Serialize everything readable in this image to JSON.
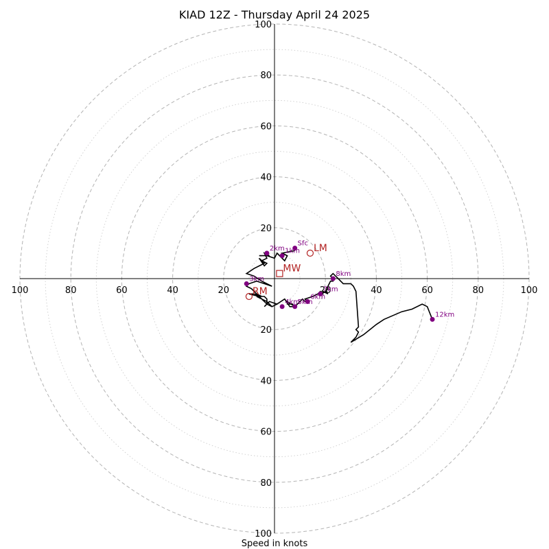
{
  "chart_data": {
    "type": "hodograph",
    "title": "KIAD 12Z - Thursday April 24 2025",
    "xlabel": "Speed in knots",
    "units": "knots",
    "range": [
      -100,
      100
    ],
    "ring_major": [
      20,
      40,
      60,
      80,
      100
    ],
    "ring_minor": [
      10,
      30,
      50,
      70,
      90
    ],
    "x_tick_labels": [
      "100",
      "80",
      "60",
      "40",
      "20",
      "20",
      "40",
      "60",
      "80",
      "100"
    ],
    "y_tick_labels": [
      "100",
      "80",
      "60",
      "40",
      "20",
      "20",
      "40",
      "60",
      "80",
      "100"
    ],
    "grid": true,
    "trace_points": [
      [
        8,
        11
      ],
      [
        3,
        10
      ],
      [
        5,
        9
      ],
      [
        4,
        7
      ],
      [
        1,
        10
      ],
      [
        0,
        8
      ],
      [
        -3,
        9
      ],
      [
        -6,
        9
      ],
      [
        -2,
        9
      ],
      [
        -4,
        10
      ],
      [
        -3,
        8
      ],
      [
        -5,
        7
      ],
      [
        -3,
        6
      ],
      [
        -4,
        5
      ],
      [
        -6,
        8
      ],
      [
        -4,
        6
      ],
      [
        -8,
        4
      ],
      [
        -11,
        2
      ],
      [
        -8,
        1
      ],
      [
        -5,
        -1
      ],
      [
        -1,
        -3
      ],
      [
        -4,
        -2
      ],
      [
        -7,
        -1
      ],
      [
        -10,
        -2
      ],
      [
        -11,
        -3
      ],
      [
        -9,
        -4
      ],
      [
        -7,
        -6
      ],
      [
        -5,
        -7
      ],
      [
        -8,
        -6
      ],
      [
        -10,
        -6
      ],
      [
        -6,
        -7
      ],
      [
        -3,
        -10
      ],
      [
        -4,
        -11
      ],
      [
        -3,
        -10
      ],
      [
        -3,
        -8
      ],
      [
        -4,
        -7
      ],
      [
        -7,
        -7
      ],
      [
        -3,
        -9
      ],
      [
        -1,
        -11
      ],
      [
        1,
        -10
      ],
      [
        -2,
        -9
      ],
      [
        -3,
        -10
      ],
      [
        -1,
        -11
      ],
      [
        1,
        -10
      ],
      [
        4,
        -8
      ],
      [
        6,
        -11
      ],
      [
        8,
        -11
      ],
      [
        5,
        -9
      ],
      [
        5,
        -10
      ],
      [
        7,
        -10
      ],
      [
        8,
        -11
      ],
      [
        10,
        -9
      ],
      [
        11,
        -8
      ],
      [
        12,
        -9
      ],
      [
        13,
        -9
      ],
      [
        12,
        -8
      ],
      [
        15,
        -7
      ],
      [
        17,
        -6
      ],
      [
        18,
        -5
      ],
      [
        19,
        -6
      ],
      [
        19,
        -5
      ],
      [
        21,
        -6
      ],
      [
        20,
        -5
      ],
      [
        21,
        -4
      ],
      [
        21,
        -3
      ],
      [
        22,
        -1
      ],
      [
        23,
        -1
      ],
      [
        23,
        0
      ],
      [
        22,
        1
      ],
      [
        23,
        2
      ],
      [
        25,
        0
      ],
      [
        27,
        -2
      ],
      [
        30,
        -2
      ],
      [
        31,
        -3
      ],
      [
        32,
        -5
      ],
      [
        33,
        -19
      ],
      [
        32,
        -20
      ],
      [
        33,
        -21
      ],
      [
        32,
        -23
      ],
      [
        30,
        -25
      ],
      [
        35,
        -22
      ],
      [
        40,
        -18
      ],
      [
        43,
        -16
      ],
      [
        50,
        -13
      ],
      [
        54,
        -12
      ],
      [
        58,
        -10
      ],
      [
        60,
        -11
      ],
      [
        62,
        -16
      ]
    ],
    "height_markers": [
      {
        "label": "Sfc",
        "u": 8,
        "v": 12
      },
      {
        "label": "1km",
        "u": 3,
        "v": 9
      },
      {
        "label": "2km",
        "u": -3,
        "v": 10
      },
      {
        "label": "3km",
        "u": -11,
        "v": -2
      },
      {
        "label": "4km",
        "u": 3,
        "v": -11
      },
      {
        "label": "5km",
        "u": 8,
        "v": -11
      },
      {
        "label": "6km",
        "u": 13,
        "v": -9
      },
      {
        "label": "7km",
        "u": 18,
        "v": -6
      },
      {
        "label": "8km",
        "u": 23,
        "v": 0
      },
      {
        "label": "12km",
        "u": 62,
        "v": -16
      }
    ],
    "motion_markers": [
      {
        "label": "LM",
        "u": 14,
        "v": 10,
        "shape": "circle"
      },
      {
        "label": "RM",
        "u": -10,
        "v": -7,
        "shape": "circle"
      },
      {
        "label": "MW",
        "u": 2,
        "v": 2,
        "shape": "square"
      }
    ]
  },
  "colors": {
    "trace": "#000000",
    "height_marker": "#800080",
    "motion_marker": "#b22222",
    "grid": "#b3b3b3",
    "axes": "#000000"
  }
}
